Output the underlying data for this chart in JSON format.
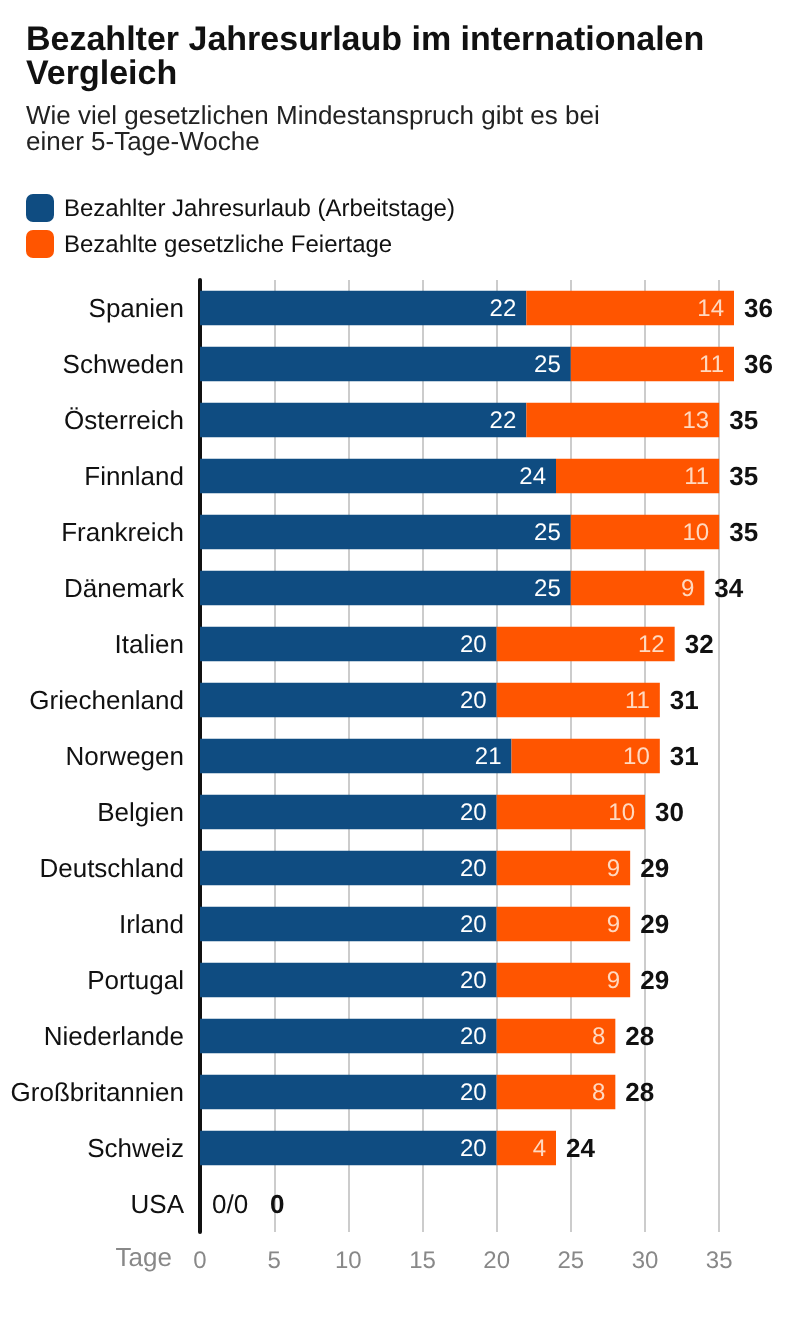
{
  "chart_data": {
    "type": "bar",
    "orientation": "horizontal",
    "stacked": true,
    "title": "Bezahlter Jahresurlaub im internationalen Vergleich",
    "subtitle": "Wie viel gesetzlichen Mindestanspruch gibt es bei einer 5-Tage-Woche",
    "xlabel": "Tage",
    "categories": [
      "Spanien",
      "Schweden",
      "Österreich",
      "Finnland",
      "Frankreich",
      "Dänemark",
      "Italien",
      "Griechenland",
      "Norwegen",
      "Belgien",
      "Deutschland",
      "Irland",
      "Portugal",
      "Niederlande",
      "Großbritannien",
      "Schweiz",
      "USA"
    ],
    "series": [
      {
        "name": "Bezahlter Jahresurlaub (Arbeitstage)",
        "color": "#0f4c81",
        "values": [
          22,
          25,
          22,
          24,
          25,
          25,
          20,
          20,
          21,
          20,
          20,
          20,
          20,
          20,
          20,
          20,
          0
        ],
        "value_labels": [
          "22",
          "25",
          "22",
          "24",
          "25",
          "25",
          "20",
          "20",
          "21",
          "20",
          "20",
          "20",
          "20",
          "20",
          "20",
          "20",
          null
        ]
      },
      {
        "name": "Bezahlte gesetzliche Feiertage",
        "color": "#ff5500",
        "values": [
          14,
          11,
          13,
          11,
          10,
          9,
          12,
          11,
          10,
          10,
          9,
          9,
          9,
          8,
          8,
          4,
          0
        ],
        "value_labels": [
          "14",
          "11",
          "13",
          "11",
          "10",
          "9",
          "12",
          "11",
          "10",
          "10",
          "9",
          "9",
          "9",
          "8",
          "8",
          "4",
          null
        ]
      }
    ],
    "totals": [
      "36",
      "36",
      "35",
      "35",
      "35",
      "34",
      "32",
      "31",
      "31",
      "30",
      "29",
      "29",
      "29",
      "28",
      "28",
      "24",
      "0"
    ],
    "annotations": [
      {
        "text": "0/0",
        "x": 0,
        "y": "USA"
      }
    ],
    "xlim": [
      0,
      36
    ],
    "xticks": [
      0,
      5,
      10,
      15,
      20,
      25,
      30,
      35
    ],
    "grid": "x",
    "legend": "top left"
  }
}
